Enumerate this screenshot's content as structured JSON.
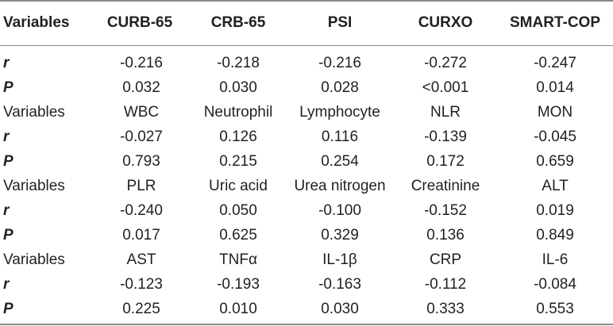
{
  "header": [
    "Variables",
    "CURB-65",
    "CRB-65",
    "PSI",
    "CURXO",
    "SMART-COP"
  ],
  "rows": [
    {
      "kind": "stat",
      "cells": [
        "r",
        "-0.216",
        "-0.218",
        "-0.216",
        "-0.272",
        "-0.247"
      ]
    },
    {
      "kind": "stat",
      "cells": [
        "P",
        "0.032",
        "0.030",
        "0.028",
        "<0.001",
        "0.014"
      ]
    },
    {
      "kind": "label",
      "cells": [
        "Variables",
        "WBC",
        "Neutrophil",
        "Lymphocyte",
        "NLR",
        "MON"
      ]
    },
    {
      "kind": "stat",
      "cells": [
        "r",
        "-0.027",
        "0.126",
        "0.116",
        "-0.139",
        "-0.045"
      ]
    },
    {
      "kind": "stat",
      "cells": [
        "P",
        "0.793",
        "0.215",
        "0.254",
        "0.172",
        "0.659"
      ]
    },
    {
      "kind": "label",
      "cells": [
        "Variables",
        "PLR",
        "Uric acid",
        "Urea nitrogen",
        "Creatinine",
        "ALT"
      ]
    },
    {
      "kind": "stat",
      "cells": [
        "r",
        "-0.240",
        "0.050",
        "-0.100",
        "-0.152",
        "0.019"
      ]
    },
    {
      "kind": "stat",
      "cells": [
        "P",
        "0.017",
        "0.625",
        "0.329",
        "0.136",
        "0.849"
      ]
    },
    {
      "kind": "label",
      "cells": [
        "Variables",
        "AST",
        "TNFα",
        "IL-1β",
        "CRP",
        "IL-6"
      ]
    },
    {
      "kind": "stat",
      "cells": [
        "r",
        "-0.123",
        "-0.193",
        "-0.163",
        "-0.112",
        "-0.084"
      ]
    },
    {
      "kind": "stat",
      "cells": [
        "P",
        "0.225",
        "0.010",
        "0.030",
        "0.333",
        "0.553"
      ]
    }
  ]
}
